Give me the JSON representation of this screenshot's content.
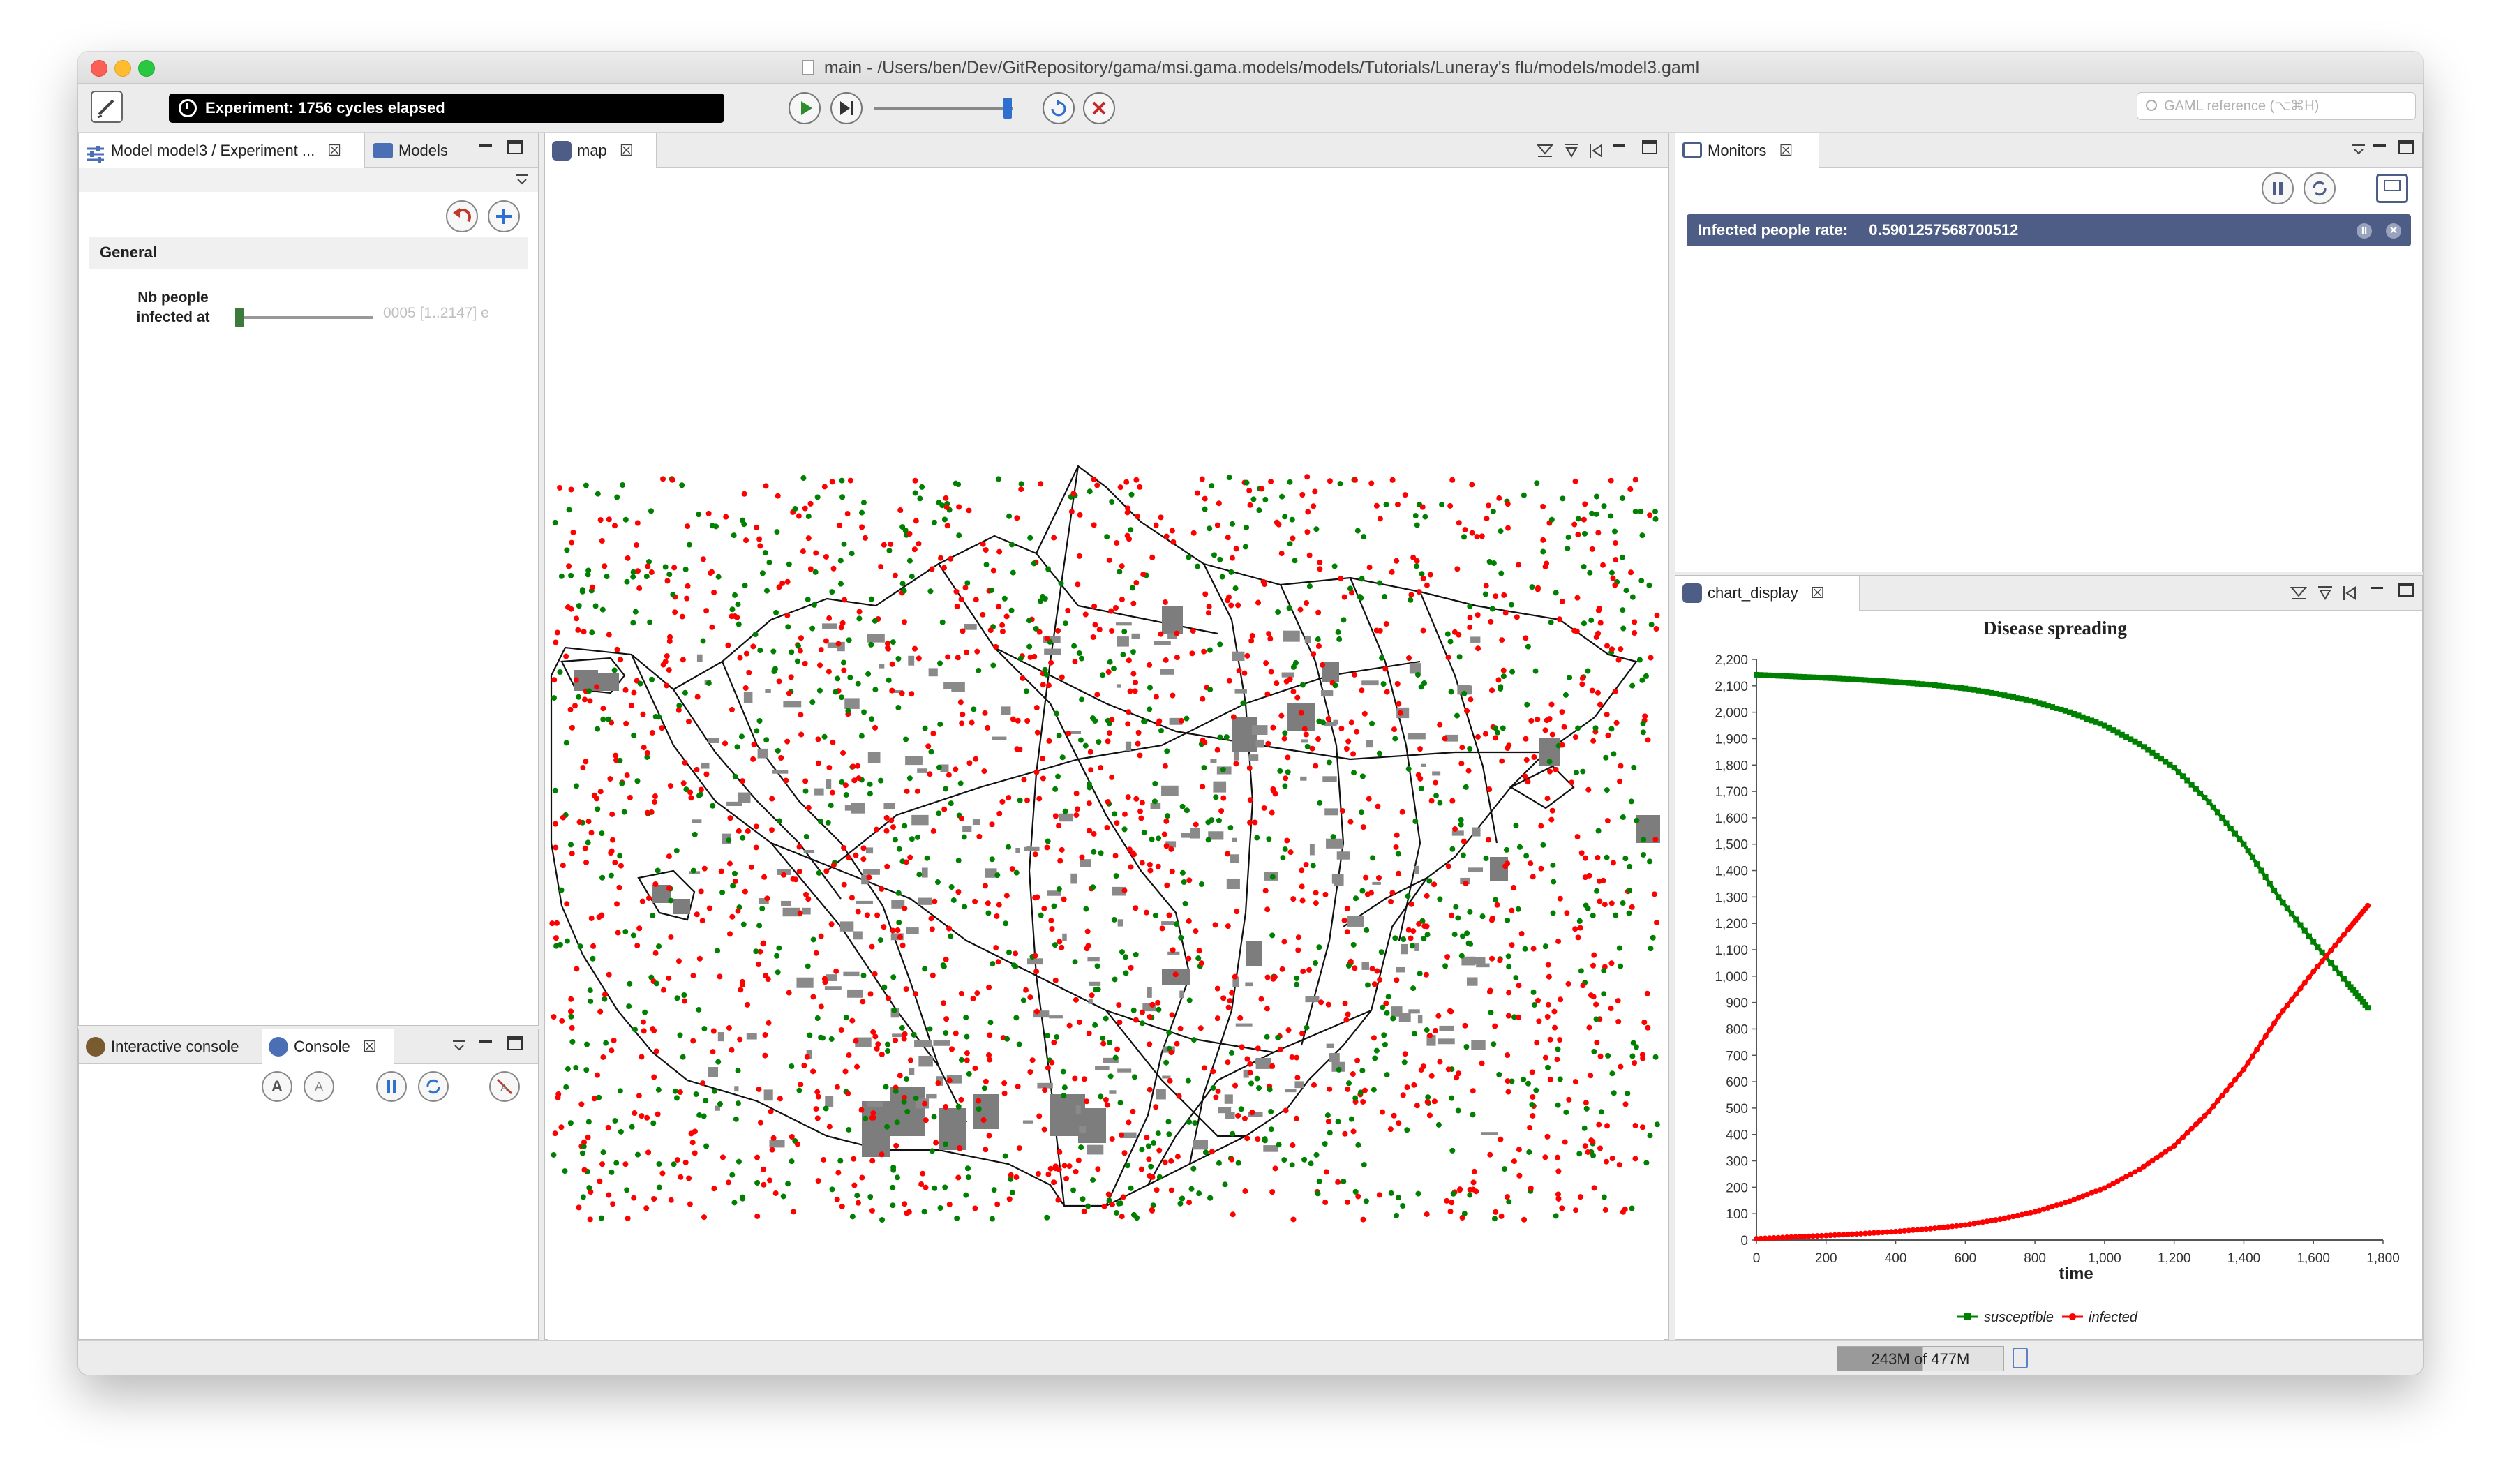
{
  "window": {
    "title": "main - /Users/ben/Dev/GitRepository/gama/msi.gama.models/models/Tutorials/Luneray's flu/models/model3.gaml"
  },
  "toolbar": {
    "status": "Experiment: 1756 cycles elapsed",
    "search_placeholder": "GAML reference (⌥⌘H)"
  },
  "left_panel": {
    "tabs": [
      {
        "label": "Model model3 / Experiment ...",
        "close": "☒"
      },
      {
        "label": "Models"
      }
    ],
    "section": "General",
    "param": {
      "label": "Nb people infected at",
      "value": "0005 [1..2147] e"
    }
  },
  "console_panel": {
    "tabs": [
      {
        "label": "Interactive console"
      },
      {
        "label": "Console",
        "close": "☒"
      }
    ]
  },
  "map_panel": {
    "tab": {
      "label": "map",
      "close": "☒"
    }
  },
  "monitors_panel": {
    "tab": {
      "label": "Monitors",
      "close": "☒"
    },
    "monitor": {
      "label": "Infected people rate:",
      "value": "0.5901257568700512"
    }
  },
  "chart_panel": {
    "tab": {
      "label": "chart_display",
      "close": "☒"
    }
  },
  "chart_data": {
    "type": "line",
    "title": "Disease spreading",
    "xlabel": "time",
    "ylabel": "",
    "xlim": [
      0,
      1800
    ],
    "ylim": [
      0,
      2200
    ],
    "x_ticks": [
      "0",
      "200",
      "400",
      "600",
      "800",
      "1,000",
      "1,200",
      "1,400",
      "1,600",
      "1,800"
    ],
    "y_ticks": [
      "0",
      "100",
      "200",
      "300",
      "400",
      "500",
      "600",
      "700",
      "800",
      "900",
      "1,000",
      "1,100",
      "1,200",
      "1,300",
      "1,400",
      "1,500",
      "1,600",
      "1,700",
      "1,800",
      "1,900",
      "2,000",
      "2,100",
      "2,200"
    ],
    "legend_position": "bottom",
    "series": [
      {
        "name": "susceptible",
        "color": "#008000",
        "x": [
          0,
          100,
          200,
          300,
          400,
          500,
          600,
          700,
          800,
          900,
          1000,
          1100,
          1200,
          1300,
          1400,
          1500,
          1600,
          1700,
          1756
        ],
        "y": [
          2142,
          2136,
          2130,
          2123,
          2115,
          2104,
          2090,
          2068,
          2040,
          2000,
          1950,
          1880,
          1790,
          1660,
          1500,
          1300,
          1130,
          970,
          880
        ]
      },
      {
        "name": "infected",
        "color": "#ff0000",
        "x": [
          0,
          100,
          200,
          300,
          400,
          500,
          600,
          700,
          800,
          900,
          1000,
          1100,
          1200,
          1300,
          1400,
          1500,
          1600,
          1700,
          1756
        ],
        "y": [
          5,
          11,
          17,
          24,
          32,
          43,
          57,
          79,
          107,
          147,
          197,
          267,
          357,
          487,
          647,
          847,
          1017,
          1177,
          1267
        ]
      }
    ]
  },
  "statusbar": {
    "memory": "243M of 477M"
  },
  "icons": {
    "play": "play-icon",
    "step": "step-icon",
    "reload": "reload-icon",
    "stop": "stop-icon"
  },
  "colors": {
    "monitor_bar": "#4e5d85",
    "susceptible": "#008000",
    "infected": "#ff0000"
  }
}
